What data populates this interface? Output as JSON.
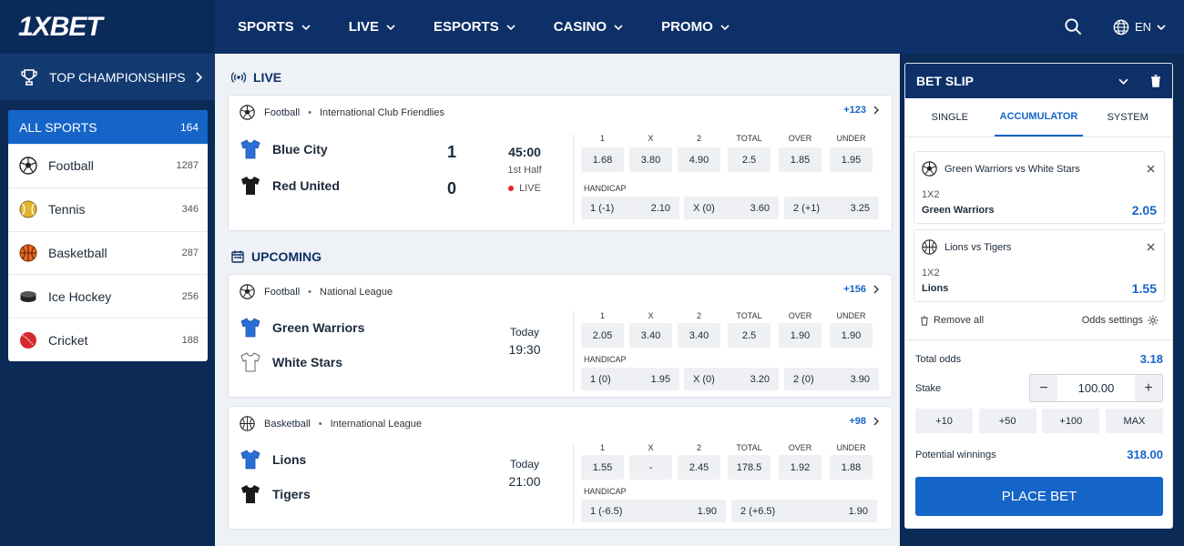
{
  "header": {
    "logo": "1XBET",
    "nav": [
      {
        "label": "SPORTS"
      },
      {
        "label": "LIVE"
      },
      {
        "label": "ESPORTS"
      },
      {
        "label": "CASINO"
      },
      {
        "label": "PROMO"
      }
    ],
    "lang": "EN"
  },
  "sidebar": {
    "top_championships": "TOP CHAMPIONSHIPS",
    "all_sports": {
      "label": "ALL SPORTS",
      "count": "164"
    },
    "sports": [
      {
        "name": "Football",
        "count": "1287",
        "icon": "soccer-ball-icon"
      },
      {
        "name": "Tennis",
        "count": "346",
        "icon": "tennis-ball-icon"
      },
      {
        "name": "Basketball",
        "count": "287",
        "icon": "basketball-icon"
      },
      {
        "name": "Ice Hockey",
        "count": "256",
        "icon": "hockey-puck-icon"
      },
      {
        "name": "Cricket",
        "count": "188",
        "icon": "cricket-ball-icon"
      }
    ]
  },
  "main": {
    "live_title": "LIVE",
    "upcoming_title": "UPCOMING",
    "headers": {
      "h1": "1",
      "hx": "X",
      "h2": "2",
      "total": "TOTAL",
      "over": "OVER",
      "under": "UNDER",
      "handicap": "HANDICAP"
    },
    "matches": [
      {
        "sport": "Football",
        "league": "International Club Friendlies",
        "more": "+123",
        "team1": "Blue City",
        "team2": "Red United",
        "score1": "1",
        "score2": "0",
        "time": "45:00",
        "period": "1st Half",
        "live_label": "LIVE",
        "odds": [
          "1.68",
          "3.80",
          "4.90",
          "2.5",
          "1.85",
          "1.95"
        ],
        "handicap": [
          {
            "label": "1 (-1)",
            "odd": "2.10"
          },
          {
            "label": "X (0)",
            "odd": "3.60"
          },
          {
            "label": "2 (+1)",
            "odd": "3.25"
          }
        ]
      },
      {
        "sport": "Football",
        "league": "National League",
        "more": "+156",
        "team1": "Green Warriors",
        "team2": "White Stars",
        "day": "Today",
        "time": "19:30",
        "odds": [
          "2.05",
          "3.40",
          "3.40",
          "2.5",
          "1.90",
          "1.90"
        ],
        "handicap": [
          {
            "label": "1 (0)",
            "odd": "1.95"
          },
          {
            "label": "X (0)",
            "odd": "3.20"
          },
          {
            "label": "2 (0)",
            "odd": "3.90"
          }
        ]
      },
      {
        "sport": "Basketball",
        "league": "International League",
        "more": "+98",
        "team1": "Lions",
        "team2": "Tigers",
        "day": "Today",
        "time": "21:00",
        "odds": [
          "1.55",
          "-",
          "2.45",
          "178.5",
          "1.92",
          "1.88"
        ],
        "handicap": [
          {
            "label": "1 (-6.5)",
            "odd": "1.90"
          },
          {
            "label": "2 (+6.5)",
            "odd": "1.90"
          }
        ]
      }
    ]
  },
  "slip": {
    "title": "BET SLIP",
    "tabs": [
      "SINGLE",
      "ACCUMULATOR",
      "SYSTEM"
    ],
    "bets": [
      {
        "match": "Green Warriors vs White Stars",
        "type": "1X2",
        "selection": "Green Warriors",
        "odd": "2.05"
      },
      {
        "match": "Lions vs Tigers",
        "type": "1X2",
        "selection": "Lions",
        "odd": "1.55"
      }
    ],
    "remove_all": "Remove all",
    "odds_settings": "Odds settings",
    "total_odds_label": "Total odds",
    "total_odds": "3.18",
    "stake_label": "Stake",
    "stake": "100.00",
    "quick": [
      "+10",
      "+50",
      "+100",
      "MAX"
    ],
    "potential_label": "Potential winnings",
    "potential": "318.00",
    "place_bet": "PLACE BET"
  },
  "colors": {
    "primary": "#1565c8",
    "header": "#0c3067",
    "live_dot": "#e0252b"
  }
}
